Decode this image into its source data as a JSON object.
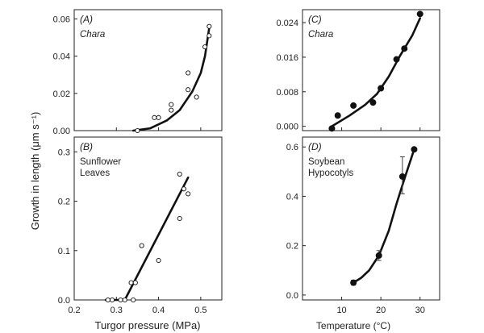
{
  "figure": {
    "ylabel": "Growth in length (μm s⁻¹)",
    "xlabel_left": "Turgor pressure (MPa)",
    "xlabel_right": "Temperature (°C)"
  },
  "chart_data": [
    {
      "type": "scatter",
      "panel": "(A)",
      "title": "Chara",
      "title_style": "italic",
      "xlim": [
        0.2,
        0.55
      ],
      "ylim": [
        0,
        0.065
      ],
      "xticks": [
        0.2,
        0.3,
        0.4,
        0.5
      ],
      "yticks": [
        0,
        0.02,
        0.04,
        0.06
      ],
      "ytick_labels": [
        "0.00",
        "0.02",
        "0.04",
        "0.06"
      ],
      "marker": "open",
      "points": [
        [
          0.35,
          0.0
        ],
        [
          0.39,
          0.007
        ],
        [
          0.4,
          0.007
        ],
        [
          0.43,
          0.014
        ],
        [
          0.43,
          0.011
        ],
        [
          0.47,
          0.022
        ],
        [
          0.47,
          0.031
        ],
        [
          0.49,
          0.018
        ],
        [
          0.51,
          0.045
        ],
        [
          0.52,
          0.056
        ],
        [
          0.52,
          0.051
        ]
      ],
      "fit": [
        [
          0.34,
          0.0
        ],
        [
          0.38,
          0.0012
        ],
        [
          0.42,
          0.0055
        ],
        [
          0.45,
          0.011
        ],
        [
          0.48,
          0.021
        ],
        [
          0.5,
          0.031
        ],
        [
          0.51,
          0.04
        ],
        [
          0.52,
          0.055
        ]
      ]
    },
    {
      "type": "scatter",
      "panel": "(C)",
      "title": "Chara",
      "title_style": "italic",
      "xlim": [
        0,
        35
      ],
      "ylim": [
        -0.001,
        0.027
      ],
      "xticks": [
        10,
        20,
        30
      ],
      "yticks": [
        0,
        0.008,
        0.016,
        0.024
      ],
      "ytick_labels": [
        "0.000",
        "0.008",
        "0.016",
        "0.024"
      ],
      "marker": "filled",
      "points": [
        [
          7.5,
          -0.0005
        ],
        [
          9,
          0.0025
        ],
        [
          13,
          0.0048
        ],
        [
          18,
          0.0055
        ],
        [
          20,
          0.0088
        ],
        [
          24,
          0.0155
        ],
        [
          26,
          0.018
        ],
        [
          30,
          0.026
        ]
      ],
      "fit": [
        [
          7.5,
          0.0
        ],
        [
          12,
          0.0025
        ],
        [
          16,
          0.005
        ],
        [
          19,
          0.0075
        ],
        [
          22,
          0.0115
        ],
        [
          25,
          0.0165
        ],
        [
          28,
          0.021
        ],
        [
          30,
          0.025
        ]
      ]
    },
    {
      "type": "scatter",
      "panel": "(B)",
      "title": "Sunflower\nLeaves",
      "title_lines": [
        "Sunflower",
        "Leaves"
      ],
      "title_style": "normal",
      "xlim": [
        0.2,
        0.55
      ],
      "ylim": [
        0,
        0.33
      ],
      "xticks": [
        0.2,
        0.3,
        0.4,
        0.5
      ],
      "xtick_labels": [
        "0.2",
        "0.3",
        "0.4",
        "0.5"
      ],
      "yticks": [
        0,
        0.1,
        0.2,
        0.3
      ],
      "ytick_labels": [
        "0.0",
        "0.1",
        "0.2",
        "0.3"
      ],
      "marker": "open",
      "points": [
        [
          0.28,
          0.0
        ],
        [
          0.29,
          0.0
        ],
        [
          0.31,
          0.0
        ],
        [
          0.32,
          0.0
        ],
        [
          0.34,
          0.0
        ],
        [
          0.335,
          0.035
        ],
        [
          0.345,
          0.035
        ],
        [
          0.36,
          0.11
        ],
        [
          0.4,
          0.08
        ],
        [
          0.45,
          0.255
        ],
        [
          0.45,
          0.165
        ],
        [
          0.46,
          0.225
        ],
        [
          0.47,
          0.215
        ]
      ],
      "fit": [
        [
          0.275,
          0.0
        ],
        [
          0.32,
          0.0
        ],
        [
          0.47,
          0.248
        ]
      ]
    },
    {
      "type": "scatter",
      "panel": "(D)",
      "title": "Soybean\nHypocotyls",
      "title_lines": [
        "Soybean",
        "Hypocotyls"
      ],
      "title_style": "normal",
      "xlim": [
        0,
        35
      ],
      "ylim": [
        -0.02,
        0.64
      ],
      "xticks": [
        10,
        20,
        30
      ],
      "xtick_labels": [
        "10",
        "20",
        "30"
      ],
      "yticks": [
        0,
        0.2,
        0.4,
        0.6
      ],
      "ytick_labels": [
        "0.0",
        "0.2",
        "0.4",
        "0.6"
      ],
      "marker": "filled",
      "points": [
        [
          13,
          0.05
        ],
        [
          19.5,
          0.16
        ],
        [
          25.5,
          0.48
        ],
        [
          28.5,
          0.59
        ]
      ],
      "error_bars": [
        [
          13,
          0.04,
          0.06
        ],
        [
          19.5,
          0.14,
          0.18
        ],
        [
          25.5,
          0.41,
          0.56
        ]
      ],
      "fit": [
        [
          13,
          0.05
        ],
        [
          15,
          0.07
        ],
        [
          17,
          0.1
        ],
        [
          19.5,
          0.16
        ],
        [
          22,
          0.26
        ],
        [
          24,
          0.37
        ],
        [
          26,
          0.47
        ],
        [
          28.5,
          0.59
        ]
      ]
    }
  ]
}
